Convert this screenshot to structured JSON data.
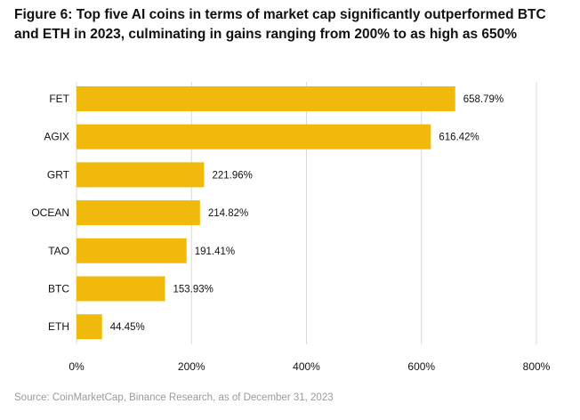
{
  "title": "Figure 6: Top five AI coins in terms of market cap significantly outperformed BTC and ETH in 2023, culminating in gains ranging from 200% to as high as 650%",
  "source": "Source: CoinMarketCap, Binance Research, as of December 31, 2023",
  "chart_data": {
    "type": "bar",
    "orientation": "horizontal",
    "categories": [
      "FET",
      "AGIX",
      "GRT",
      "OCEAN",
      "TAO",
      "BTC",
      "ETH"
    ],
    "values": [
      658.79,
      616.42,
      221.96,
      214.82,
      191.41,
      153.93,
      44.45
    ],
    "value_labels": [
      "658.79%",
      "616.42%",
      "221.96%",
      "214.82%",
      "191.41%",
      "153.93%",
      "44.45%"
    ],
    "xlim": [
      0,
      800
    ],
    "xticks": [
      0,
      200,
      400,
      600,
      800
    ],
    "xtick_labels": [
      "0%",
      "200%",
      "400%",
      "600%",
      "800%"
    ],
    "grid": "vertical",
    "bar_color": "#F0B90B",
    "grid_color": "#d9d9d9",
    "label_color": "#111111"
  }
}
